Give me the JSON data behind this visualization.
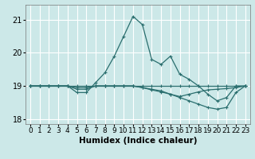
{
  "xlabel": "Humidex (Indice chaleur)",
  "bg_color": "#cce8e8",
  "line_color": "#2a6e6e",
  "grid_color": "#ffffff",
  "xlim": [
    -0.5,
    23.5
  ],
  "ylim": [
    17.85,
    21.45
  ],
  "yticks": [
    18,
    19,
    20,
    21
  ],
  "xticks": [
    0,
    1,
    2,
    3,
    4,
    5,
    6,
    7,
    8,
    9,
    10,
    11,
    12,
    13,
    14,
    15,
    16,
    17,
    18,
    19,
    20,
    21,
    22,
    23
  ],
  "series": [
    [
      19.0,
      19.0,
      19.0,
      19.0,
      19.0,
      18.8,
      18.8,
      19.1,
      19.4,
      19.9,
      20.5,
      21.1,
      20.85,
      19.8,
      19.65,
      19.9,
      19.35,
      19.2,
      19.0,
      18.75,
      18.55,
      18.65,
      19.0,
      19.0
    ],
    [
      19.0,
      19.0,
      19.0,
      19.0,
      19.0,
      19.0,
      19.0,
      19.0,
      19.0,
      19.0,
      19.0,
      19.0,
      19.0,
      19.0,
      19.0,
      19.0,
      19.0,
      19.0,
      19.0,
      19.0,
      19.0,
      19.0,
      19.0,
      19.0
    ],
    [
      19.0,
      19.0,
      19.0,
      19.0,
      19.0,
      18.9,
      18.9,
      19.0,
      19.0,
      19.0,
      19.0,
      19.0,
      18.95,
      18.9,
      18.85,
      18.75,
      18.65,
      18.55,
      18.45,
      18.35,
      18.3,
      18.35,
      18.8,
      19.0
    ],
    [
      19.0,
      19.0,
      19.0,
      19.0,
      19.0,
      18.95,
      18.95,
      19.0,
      19.0,
      19.0,
      19.0,
      19.0,
      18.95,
      18.88,
      18.82,
      18.75,
      18.68,
      18.75,
      18.82,
      18.88,
      18.9,
      18.92,
      18.95,
      19.0
    ]
  ],
  "marker": "+",
  "markersize": 3.5,
  "linewidth": 0.9,
  "font_size": 6.5,
  "xlabel_fontsize": 7.5
}
